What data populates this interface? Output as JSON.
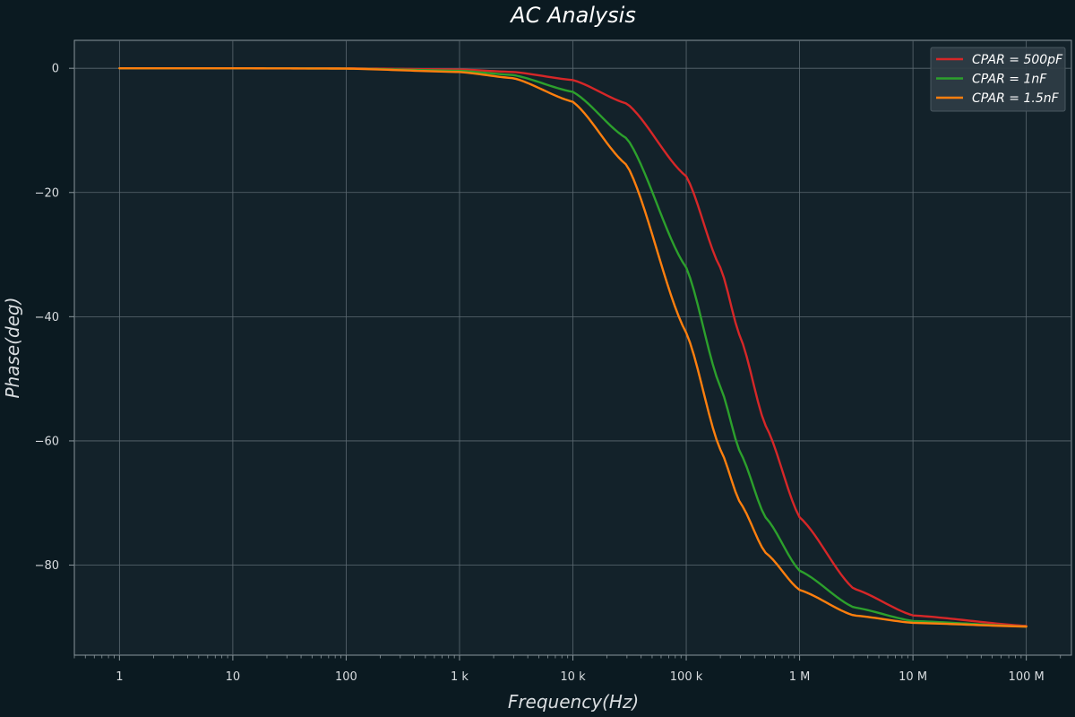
{
  "chart_data": {
    "type": "line",
    "title": "AC Analysis",
    "xlabel": "Frequency(Hz)",
    "ylabel": "Phase(deg)",
    "x_scale": "log",
    "xlim": [
      0.4,
      250000000
    ],
    "ylim": [
      -94.5,
      4.5
    ],
    "x_ticks": [
      1,
      10,
      100,
      1000,
      10000,
      100000,
      1000000,
      10000000,
      100000000
    ],
    "x_tick_labels": [
      "1",
      "10",
      "100",
      "1 k",
      "10 k",
      "100 k",
      "1 M",
      "10 M",
      "100 M"
    ],
    "y_ticks": [
      0,
      -20,
      -40,
      -60,
      -80
    ],
    "y_tick_labels": [
      "0",
      "−20",
      "−40",
      "−60",
      "−80"
    ],
    "grid": true,
    "legend_position": "top-right",
    "x": [
      1,
      10,
      100,
      1000,
      3000,
      10000,
      30000,
      100000,
      200000,
      300000,
      500000,
      1000000,
      3000000,
      10000000,
      100000000
    ],
    "series": [
      {
        "name": "CPAR = 500pF",
        "color": "#d62728",
        "values": [
          0,
          0,
          0,
          -0.2,
          -0.6,
          -1.9,
          -5.7,
          -17.4,
          -32.1,
          -43.3,
          -57.5,
          -72.3,
          -83.8,
          -88.1,
          -89.8
        ]
      },
      {
        "name": "CPAR = 1nF",
        "color": "#2ca02c",
        "values": [
          0,
          0,
          -0.04,
          -0.4,
          -1.1,
          -3.8,
          -11.3,
          -32.1,
          -51.3,
          -61.9,
          -72.3,
          -80.9,
          -86.8,
          -89.0,
          -89.9
        ]
      },
      {
        "name": "CPAR = 1.5nF",
        "color": "#ff7f0e",
        "values": [
          0,
          0,
          -0.05,
          -0.6,
          -1.6,
          -5.4,
          -15.6,
          -42.6,
          -61.4,
          -70.0,
          -78.0,
          -84.0,
          -88.1,
          -89.3,
          -89.9
        ]
      }
    ],
    "legend_labels": [
      "CPAR = 500pF",
      "CPAR = 1nF",
      "CPAR = 1.5nF"
    ]
  },
  "colors": {
    "page_background": "#0b1a21",
    "plot_background": "#13222a",
    "grid": "#5c6a72",
    "spine": "#8a969c",
    "text": "#d9dde0",
    "legend_background": "#2f3d45"
  }
}
